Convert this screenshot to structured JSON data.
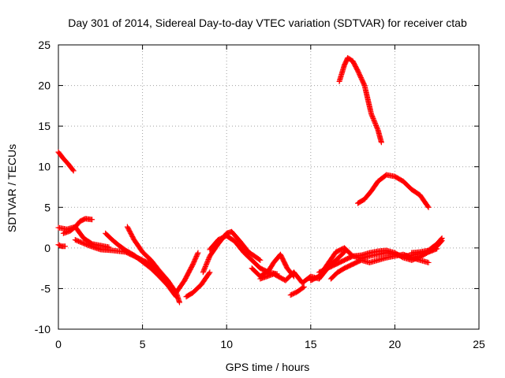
{
  "chart_data": {
    "type": "scatter",
    "title": "Day 301 of 2014, Sidereal Day-to-day VTEC variation (SDTVAR) for receiver ctab",
    "xlabel": "GPS time / hours",
    "ylabel": "SDTVAR / TECUs",
    "xlim": [
      0,
      25
    ],
    "ylim": [
      -10,
      25
    ],
    "xticks": [
      0,
      5,
      10,
      15,
      20,
      25
    ],
    "yticks": [
      -10,
      -5,
      0,
      5,
      10,
      15,
      20,
      25
    ],
    "grid": true,
    "marker": "plus",
    "color": "#ff0000",
    "series": [
      {
        "name": "s1",
        "x": [
          0.0,
          0.3,
          0.6,
          0.9
        ],
        "y": [
          11.8,
          11.0,
          10.3,
          9.5
        ]
      },
      {
        "name": "s2",
        "x": [
          0.0,
          0.2,
          0.4
        ],
        "y": [
          0.4,
          0.2,
          0.2
        ]
      },
      {
        "name": "s3",
        "x": [
          0.0,
          0.5,
          1.0,
          1.3,
          1.6,
          2.0
        ],
        "y": [
          2.5,
          2.3,
          2.6,
          3.3,
          3.6,
          3.5
        ]
      },
      {
        "name": "s4",
        "x": [
          0.3,
          0.7,
          1.0,
          1.5,
          2.0,
          2.5,
          3.0
        ],
        "y": [
          1.8,
          2.1,
          2.6,
          1.2,
          0.5,
          0.3,
          0.1
        ]
      },
      {
        "name": "s5",
        "x": [
          1.0,
          1.8,
          2.5,
          3.2,
          4.0,
          4.5,
          5.0,
          5.5,
          6.0,
          6.5,
          7.0,
          7.2
        ],
        "y": [
          1.0,
          0.3,
          -0.2,
          -0.3,
          -0.5,
          -1.0,
          -1.5,
          -2.0,
          -3.0,
          -4.0,
          -5.5,
          -6.7
        ]
      },
      {
        "name": "s6",
        "x": [
          2.8,
          3.2,
          3.6,
          4.0,
          4.5,
          5.0,
          5.5,
          6.0,
          6.5,
          7.0
        ],
        "y": [
          1.8,
          1.0,
          0.3,
          -0.3,
          -0.9,
          -1.7,
          -2.5,
          -3.5,
          -4.6,
          -6.0
        ]
      },
      {
        "name": "s7",
        "x": [
          4.1,
          4.5,
          5.0,
          5.5,
          6.0,
          6.5
        ],
        "y": [
          2.6,
          1.0,
          -0.5,
          -1.5,
          -2.8,
          -4.0
        ]
      },
      {
        "name": "s8",
        "x": [
          7.0,
          7.5,
          8.0,
          8.3
        ],
        "y": [
          -5.5,
          -4.0,
          -2.0,
          -0.6
        ]
      },
      {
        "name": "s9",
        "x": [
          7.6,
          8.0,
          8.5,
          9.0
        ],
        "y": [
          -6.0,
          -5.5,
          -4.5,
          -3.0
        ]
      },
      {
        "name": "s10",
        "x": [
          8.6,
          9.0,
          9.5,
          10.0,
          10.3,
          10.8,
          11.3,
          12.0
        ],
        "y": [
          -3.0,
          -1.0,
          0.5,
          1.8,
          2.0,
          0.8,
          -0.5,
          -1.5
        ]
      },
      {
        "name": "s11",
        "x": [
          9.0,
          9.5,
          10.0,
          10.5,
          11.0,
          11.5,
          12.0,
          12.5,
          13.0
        ],
        "y": [
          -0.2,
          1.0,
          1.5,
          0.8,
          -0.5,
          -1.5,
          -2.5,
          -3.0,
          -3.2
        ]
      },
      {
        "name": "s12",
        "x": [
          11.5,
          12.0,
          12.5,
          12.8,
          13.2,
          13.6,
          14.0
        ],
        "y": [
          -2.5,
          -3.5,
          -2.8,
          -1.8,
          -0.8,
          -2.5,
          -3.5
        ]
      },
      {
        "name": "s13",
        "x": [
          12.0,
          12.8,
          13.5,
          14.0,
          14.5,
          15.0,
          15.5,
          16.0,
          16.5,
          17.0
        ],
        "y": [
          -3.8,
          -3.2,
          -4.0,
          -3.0,
          -4.3,
          -3.5,
          -3.8,
          -2.5,
          -1.5,
          -0.5
        ]
      },
      {
        "name": "s14",
        "x": [
          13.8,
          14.2,
          14.6
        ],
        "y": [
          -5.8,
          -5.4,
          -4.8
        ]
      },
      {
        "name": "s15",
        "x": [
          15.0,
          15.5,
          16.0,
          16.5,
          17.0,
          17.5,
          18.0,
          18.5,
          19.0,
          19.5,
          20.0,
          20.5,
          21.0,
          21.5,
          22.0,
          22.5,
          22.8
        ],
        "y": [
          -4.0,
          -3.5,
          -2.0,
          -0.5,
          0.0,
          -1.0,
          -1.3,
          -1.0,
          -0.8,
          -0.6,
          -0.8,
          -1.0,
          -0.9,
          -0.7,
          -0.5,
          0.2,
          0.9
        ]
      },
      {
        "name": "s16",
        "x": [
          15.5,
          16.0,
          16.5,
          17.0,
          17.5,
          18.0,
          18.5,
          19.0,
          19.5,
          20.0,
          20.5,
          21.0,
          21.5,
          22.0,
          22.5
        ],
        "y": [
          -3.0,
          -2.5,
          -2.0,
          -1.5,
          -1.0,
          -0.9,
          -0.6,
          -0.4,
          -0.3,
          -0.6,
          -1.2,
          -1.5,
          -1.1,
          -0.5,
          -0.1
        ]
      },
      {
        "name": "s17",
        "x": [
          16.2,
          16.6,
          17.0,
          17.5,
          18.0,
          18.5,
          19.0,
          19.5,
          20.0,
          20.5,
          21.0,
          21.5,
          22.0
        ],
        "y": [
          -3.8,
          -3.0,
          -2.5,
          -2.0,
          -1.5,
          -1.8,
          -1.5,
          -1.2,
          -1.0,
          -0.8,
          -1.2,
          -1.5,
          -1.8
        ]
      },
      {
        "name": "s18",
        "x": [
          16.7,
          17.0,
          17.2,
          17.5,
          17.8,
          18.2,
          18.6,
          19.0,
          19.2
        ],
        "y": [
          20.5,
          22.5,
          23.4,
          23.0,
          21.8,
          20.0,
          16.5,
          14.5,
          13.0
        ]
      },
      {
        "name": "s19",
        "x": [
          17.8,
          18.2,
          18.6,
          19.0,
          19.5,
          20.0,
          20.5,
          21.0,
          21.5,
          22.0
        ],
        "y": [
          5.5,
          6.0,
          7.0,
          8.2,
          9.0,
          8.8,
          8.2,
          7.2,
          6.5,
          5.0
        ]
      },
      {
        "name": "s20",
        "x": [
          21.0,
          21.5,
          22.0,
          22.5,
          22.8
        ],
        "y": [
          -0.6,
          -0.5,
          -0.3,
          0.5,
          1.2
        ]
      }
    ]
  }
}
